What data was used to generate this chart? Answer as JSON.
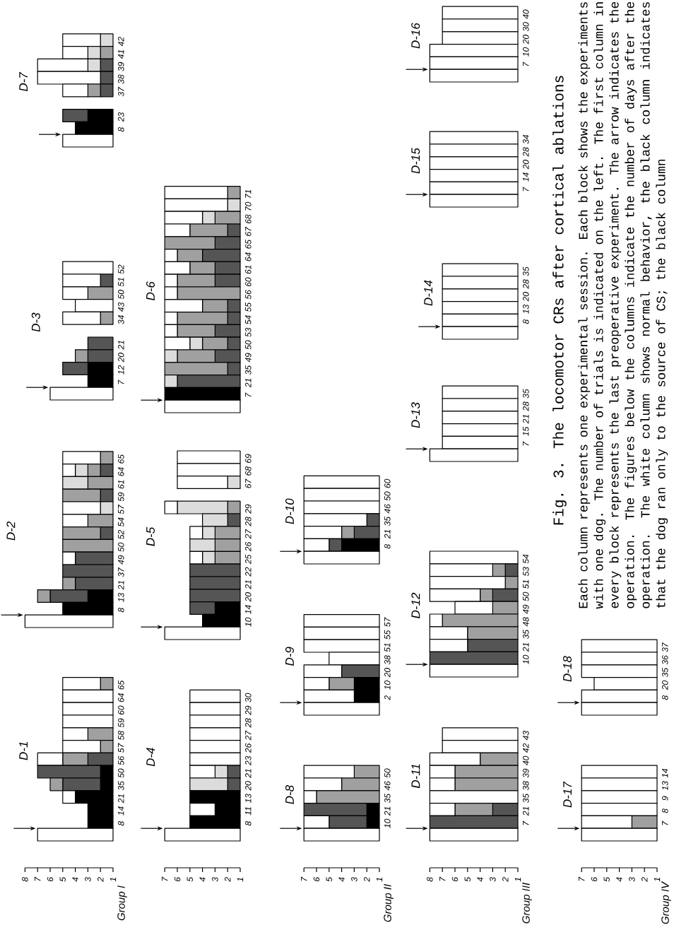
{
  "chart_data": [
    {
      "type": "bar",
      "orientation": "horizontal",
      "title": "D-1",
      "ylabel": "Group I",
      "xlim": [
        8,
        1
      ],
      "xticks": [
        1,
        2,
        3,
        4,
        5,
        6,
        7,
        8
      ],
      "categories": [
        "65",
        "64",
        "60",
        "59",
        "58",
        "57",
        "56",
        "50",
        "35",
        "21",
        "14",
        "8",
        null
      ],
      "series": [
        {
          "color": "#000000",
          "base": [
            null,
            null,
            null,
            null,
            null,
            null,
            null,
            1,
            1,
            1,
            1,
            1,
            null
          ],
          "values": [
            null,
            null,
            null,
            null,
            null,
            null,
            null,
            1,
            1,
            3,
            2,
            2,
            null
          ]
        },
        {
          "color": "#555555",
          "base": [
            null,
            null,
            null,
            null,
            null,
            null,
            1,
            2,
            2,
            null,
            null,
            null,
            null
          ],
          "values": [
            null,
            null,
            null,
            null,
            null,
            null,
            2,
            5,
            3,
            null,
            null,
            null,
            null
          ]
        },
        {
          "color": "#a0a0a0",
          "base": [
            1,
            null,
            null,
            null,
            1,
            1,
            3,
            null,
            5,
            null,
            null,
            null,
            null
          ],
          "values": [
            1,
            null,
            null,
            null,
            2,
            1,
            2,
            null,
            1,
            null,
            null,
            null,
            null
          ]
        },
        {
          "color": "#ffffff",
          "base": [
            2,
            1,
            1,
            1,
            3,
            2,
            5,
            null,
            null,
            4,
            null,
            null,
            1
          ],
          "values": [
            3,
            4,
            4,
            4,
            2,
            3,
            2,
            null,
            null,
            1,
            null,
            null,
            6
          ]
        }
      ]
    },
    {
      "type": "bar",
      "orientation": "horizontal",
      "title": "D-2",
      "xlim": [
        8,
        1
      ],
      "tick_labels": "y",
      "categories": [
        "65",
        "64",
        "61",
        "59",
        "57",
        "54",
        "52",
        "50",
        "49",
        "37",
        "21",
        "13",
        "8",
        null
      ],
      "series": [
        {
          "color": "#000000",
          "base": [
            null,
            null,
            null,
            null,
            null,
            null,
            null,
            null,
            null,
            null,
            null,
            1,
            1,
            null
          ],
          "values": [
            null,
            null,
            null,
            null,
            null,
            null,
            null,
            null,
            null,
            null,
            null,
            2,
            4,
            null
          ]
        },
        {
          "color": "#555555",
          "base": [
            null,
            1,
            null,
            1,
            null,
            null,
            1,
            null,
            1,
            1,
            1,
            3,
            null,
            null
          ],
          "values": [
            null,
            1,
            null,
            1,
            null,
            null,
            1,
            null,
            3,
            4,
            3,
            3,
            null,
            null
          ]
        },
        {
          "color": "#a0a0a0",
          "base": [
            1,
            2,
            1,
            2,
            null,
            1,
            2,
            1,
            null,
            null,
            4,
            6,
            null,
            null
          ],
          "values": [
            1,
            1,
            2,
            3,
            null,
            2,
            3,
            4,
            null,
            null,
            1,
            1,
            null,
            null
          ]
        },
        {
          "color": "#dcdcdc",
          "base": [
            null,
            3,
            3,
            null,
            1,
            null,
            null,
            null,
            null,
            null,
            null,
            null,
            null,
            null
          ],
          "values": [
            null,
            1,
            2,
            null,
            1,
            null,
            null,
            null,
            null,
            null,
            null,
            null,
            null,
            null
          ]
        },
        {
          "color": "#ffffff",
          "base": [
            2,
            4,
            null,
            null,
            2,
            3,
            null,
            null,
            4,
            null,
            null,
            null,
            null,
            1
          ],
          "values": [
            3,
            1,
            null,
            null,
            3,
            2,
            null,
            null,
            1,
            null,
            null,
            null,
            null,
            7
          ]
        }
      ]
    },
    {
      "type": "bar",
      "orientation": "horizontal",
      "title": "D-3",
      "xlim": [
        8,
        1
      ],
      "tick_labels": "y",
      "categories": [
        "52",
        "51",
        "50",
        "43",
        "34",
        null,
        "21",
        "20",
        "12",
        "7",
        null
      ],
      "series": [
        {
          "color": "#000000",
          "base": [
            null,
            null,
            null,
            null,
            null,
            null,
            null,
            null,
            1,
            1,
            null
          ],
          "values": [
            null,
            null,
            null,
            null,
            null,
            null,
            null,
            null,
            2,
            2,
            null
          ]
        },
        {
          "color": "#555555",
          "base": [
            null,
            1,
            null,
            null,
            null,
            null,
            1,
            1,
            3,
            null,
            null
          ],
          "values": [
            null,
            1,
            null,
            null,
            null,
            null,
            2,
            2,
            2,
            null,
            null
          ]
        },
        {
          "color": "#a0a0a0",
          "base": [
            null,
            null,
            1,
            null,
            1,
            null,
            null,
            3,
            null,
            null,
            null
          ],
          "values": [
            null,
            null,
            2,
            null,
            1,
            null,
            null,
            1,
            null,
            null,
            null
          ]
        },
        {
          "color": "#ffffff",
          "base": [
            1,
            2,
            3,
            1,
            2,
            null,
            null,
            null,
            null,
            null,
            1
          ],
          "values": [
            4,
            3,
            2,
            3,
            3,
            null,
            null,
            null,
            null,
            null,
            5
          ]
        }
      ]
    },
    {
      "type": "bar",
      "orientation": "horizontal",
      "title": "D-7",
      "xlim": [
        8,
        1
      ],
      "tick_labels": "y",
      "categories": [
        "42",
        "41",
        "39",
        "38",
        "37",
        null,
        "23",
        "8",
        null
      ],
      "series": [
        {
          "color": "#000000",
          "base": [
            null,
            null,
            null,
            null,
            null,
            null,
            1,
            1,
            null
          ],
          "values": [
            null,
            null,
            null,
            null,
            null,
            null,
            2,
            3,
            null
          ]
        },
        {
          "color": "#555555",
          "base": [
            null,
            null,
            1,
            1,
            1,
            null,
            3,
            null,
            null
          ],
          "values": [
            null,
            null,
            1,
            1,
            1,
            null,
            2,
            null,
            null
          ]
        },
        {
          "color": "#a0a0a0",
          "base": [
            null,
            1,
            null,
            null,
            2,
            null,
            null,
            null,
            null
          ],
          "values": [
            null,
            1,
            null,
            null,
            1,
            null,
            null,
            null,
            null
          ]
        },
        {
          "color": "#dcdcdc",
          "base": [
            1,
            2,
            2,
            null,
            null,
            null,
            null,
            null,
            null
          ],
          "values": [
            1,
            1,
            1,
            null,
            null,
            null,
            null,
            null,
            null
          ]
        },
        {
          "color": "#ffffff",
          "base": [
            2,
            3,
            3,
            2,
            3,
            null,
            null,
            null,
            1
          ],
          "values": [
            3,
            2,
            4,
            5,
            2,
            null,
            null,
            null,
            4
          ]
        }
      ]
    },
    {
      "type": "bar",
      "orientation": "horizontal",
      "title": "D-4",
      "xlim": [
        7,
        1
      ],
      "xticks": [
        1,
        2,
        3,
        4,
        5,
        6,
        7
      ],
      "categories": [
        "30",
        "29",
        "28",
        "27",
        "26",
        "23",
        "21",
        "20",
        "13",
        "11",
        "8",
        null
      ],
      "series": [
        {
          "color": "#000000",
          "base": [
            null,
            null,
            null,
            null,
            null,
            null,
            null,
            null,
            1,
            1,
            1,
            null
          ],
          "values": [
            null,
            null,
            null,
            null,
            null,
            null,
            null,
            null,
            4,
            2,
            4,
            null
          ]
        },
        {
          "color": "#555555",
          "base": [
            null,
            null,
            null,
            null,
            null,
            null,
            1,
            1,
            null,
            null,
            null,
            null
          ],
          "values": [
            null,
            null,
            null,
            null,
            null,
            null,
            1,
            1,
            null,
            null,
            null,
            null
          ]
        },
        {
          "color": "#dcdcdc",
          "base": [
            null,
            null,
            null,
            null,
            null,
            null,
            2,
            2,
            null,
            null,
            null,
            null
          ],
          "values": [
            null,
            null,
            null,
            null,
            null,
            null,
            1,
            3,
            null,
            null,
            null,
            null
          ]
        },
        {
          "color": "#ffffff",
          "base": [
            1,
            1,
            1,
            1,
            1,
            1,
            3,
            null,
            null,
            3,
            null,
            1
          ],
          "values": [
            4,
            4,
            4,
            4,
            4,
            4,
            2,
            null,
            null,
            2,
            null,
            6
          ]
        }
      ]
    },
    {
      "type": "bar",
      "orientation": "horizontal",
      "title": "D-5",
      "xlim": [
        7,
        1
      ],
      "tick_labels": "y",
      "categories": [
        "69",
        "68",
        "67",
        null,
        "29",
        "28",
        "27",
        "26",
        "25",
        "22",
        "21",
        "20",
        "14",
        "10",
        null
      ],
      "series": [
        {
          "color": "#000000",
          "base": [
            null,
            null,
            null,
            null,
            null,
            null,
            null,
            null,
            null,
            null,
            null,
            null,
            1,
            1,
            null
          ],
          "values": [
            null,
            null,
            null,
            null,
            null,
            null,
            null,
            null,
            null,
            null,
            null,
            null,
            2,
            3,
            null
          ]
        },
        {
          "color": "#555555",
          "base": [
            null,
            null,
            null,
            null,
            null,
            1,
            null,
            null,
            null,
            1,
            1,
            1,
            3,
            null,
            null
          ],
          "values": [
            null,
            null,
            null,
            null,
            null,
            1,
            null,
            null,
            null,
            4,
            4,
            4,
            2,
            null,
            null
          ]
        },
        {
          "color": "#a0a0a0",
          "base": [
            null,
            null,
            null,
            null,
            1,
            null,
            1,
            1,
            1,
            null,
            null,
            null,
            null,
            null,
            null
          ],
          "values": [
            null,
            null,
            null,
            null,
            1,
            null,
            2,
            2,
            2,
            null,
            null,
            null,
            null,
            null,
            null
          ]
        },
        {
          "color": "#dcdcdc",
          "base": [
            null,
            null,
            1,
            null,
            2,
            2,
            3,
            3,
            3,
            null,
            null,
            null,
            null,
            null,
            null
          ],
          "values": [
            null,
            null,
            1,
            null,
            4,
            2,
            1,
            2,
            1,
            null,
            null,
            null,
            null,
            null,
            null
          ]
        },
        {
          "color": "#ffffff",
          "base": [
            1,
            1,
            2,
            null,
            6,
            null,
            4,
            null,
            4,
            null,
            null,
            null,
            null,
            null,
            1
          ],
          "values": [
            5,
            5,
            4,
            null,
            1,
            null,
            1,
            null,
            1,
            null,
            null,
            null,
            null,
            null,
            6
          ]
        }
      ]
    },
    {
      "type": "bar",
      "orientation": "horizontal",
      "title": "D-6",
      "xlim": [
        7,
        1
      ],
      "tick_labels": "y",
      "categories": [
        "71",
        "70",
        "68",
        "67",
        "65",
        "64",
        "61",
        "60",
        "56",
        "55",
        "54",
        "53",
        "50",
        "49",
        "35",
        "21",
        "7",
        null
      ],
      "series": [
        {
          "color": "#000000",
          "base": [
            null,
            null,
            null,
            null,
            null,
            null,
            null,
            null,
            null,
            null,
            null,
            null,
            null,
            null,
            null,
            null,
            1,
            null
          ],
          "values": [
            null,
            null,
            null,
            null,
            null,
            null,
            null,
            null,
            null,
            null,
            null,
            null,
            null,
            null,
            null,
            null,
            6,
            null
          ]
        },
        {
          "color": "#555555",
          "base": [
            null,
            null,
            null,
            1,
            1,
            1,
            1,
            1,
            null,
            1,
            1,
            1,
            1,
            1,
            1,
            1,
            null,
            null
          ],
          "values": [
            null,
            null,
            null,
            1,
            2,
            3,
            2,
            2,
            null,
            1,
            1,
            2,
            1,
            2,
            1,
            5,
            null,
            null
          ]
        },
        {
          "color": "#a0a0a0",
          "base": [
            1,
            null,
            1,
            2,
            3,
            4,
            3,
            3,
            1,
            2,
            2,
            3,
            2,
            3,
            2,
            null,
            null,
            null
          ],
          "values": [
            1,
            null,
            2,
            3,
            4,
            2,
            2,
            3,
            5,
            2,
            4,
            3,
            2,
            3,
            5,
            null,
            null,
            null
          ]
        },
        {
          "color": "#dcdcdc",
          "base": [
            null,
            1,
            3,
            null,
            null,
            null,
            null,
            null,
            null,
            null,
            null,
            null,
            4,
            6,
            null,
            6,
            null,
            null
          ],
          "values": [
            null,
            1,
            1,
            null,
            null,
            null,
            null,
            null,
            null,
            null,
            null,
            null,
            1,
            1,
            null,
            1,
            null,
            null
          ]
        },
        {
          "color": "#ffffff",
          "base": [
            2,
            2,
            4,
            5,
            null,
            6,
            5,
            6,
            6,
            4,
            6,
            6,
            5,
            null,
            null,
            null,
            null,
            1
          ],
          "values": [
            5,
            5,
            3,
            2,
            null,
            1,
            2,
            1,
            1,
            3,
            1,
            1,
            2,
            null,
            null,
            null,
            null,
            6
          ]
        }
      ]
    },
    {
      "type": "bar",
      "orientation": "horizontal",
      "title": "D-8",
      "ylabel": "Group II",
      "xlim": [
        7,
        1
      ],
      "xticks": [
        1,
        2,
        3,
        4,
        5,
        6,
        7
      ],
      "categories": [
        "50",
        "46",
        "35",
        "21",
        "10",
        null
      ],
      "series": [
        {
          "color": "#000000",
          "base": [
            null,
            null,
            null,
            1,
            1,
            null
          ],
          "values": [
            null,
            null,
            null,
            1,
            1,
            null
          ]
        },
        {
          "color": "#555555",
          "base": [
            null,
            null,
            null,
            2,
            2,
            null
          ],
          "values": [
            null,
            null,
            null,
            5,
            3,
            null
          ]
        },
        {
          "color": "#a0a0a0",
          "base": [
            1,
            1,
            1,
            null,
            null,
            null
          ],
          "values": [
            2,
            3,
            5,
            null,
            null,
            null
          ]
        },
        {
          "color": "#ffffff",
          "base": [
            3,
            4,
            6,
            null,
            5,
            1
          ],
          "values": [
            4,
            3,
            1,
            null,
            2,
            6
          ]
        }
      ]
    },
    {
      "type": "bar",
      "orientation": "horizontal",
      "title": "D-9",
      "xlim": [
        7,
        1
      ],
      "tick_labels": "y",
      "categories": [
        "57",
        "55",
        "51",
        "38",
        "20",
        "10",
        "2",
        null
      ],
      "series": [
        {
          "color": "#000000",
          "base": [
            null,
            null,
            null,
            null,
            null,
            1,
            1,
            null
          ],
          "values": [
            null,
            null,
            null,
            null,
            null,
            2,
            2,
            null
          ]
        },
        {
          "color": "#555555",
          "base": [
            null,
            null,
            null,
            null,
            1,
            null,
            null,
            null
          ],
          "values": [
            null,
            null,
            null,
            null,
            3,
            null,
            null,
            null
          ]
        },
        {
          "color": "#a0a0a0",
          "base": [
            null,
            null,
            null,
            null,
            null,
            3,
            null,
            null
          ],
          "values": [
            null,
            null,
            null,
            null,
            null,
            2,
            null,
            null
          ]
        },
        {
          "color": "#ffffff",
          "base": [
            1,
            1,
            1,
            1,
            4,
            5,
            3,
            1
          ],
          "values": [
            6,
            6,
            6,
            4,
            3,
            2,
            4,
            6
          ]
        }
      ]
    },
    {
      "type": "bar",
      "orientation": "horizontal",
      "title": "D-10",
      "xlim": [
        7,
        1
      ],
      "tick_labels": "y",
      "categories": [
        "60",
        "50",
        "46",
        "35",
        "21",
        "8",
        null
      ],
      "series": [
        {
          "color": "#000000",
          "base": [
            null,
            null,
            null,
            null,
            null,
            1,
            null
          ],
          "values": [
            null,
            null,
            null,
            null,
            null,
            3,
            null
          ]
        },
        {
          "color": "#555555",
          "base": [
            null,
            null,
            null,
            1,
            1,
            4,
            null
          ],
          "values": [
            null,
            null,
            null,
            1,
            2,
            1,
            null
          ]
        },
        {
          "color": "#a0a0a0",
          "base": [
            null,
            null,
            null,
            null,
            3,
            null,
            null
          ],
          "values": [
            null,
            null,
            null,
            null,
            1,
            null,
            null
          ]
        },
        {
          "color": "#ffffff",
          "base": [
            1,
            1,
            1,
            2,
            4,
            5,
            1
          ],
          "values": [
            6,
            6,
            6,
            5,
            3,
            2,
            6
          ]
        }
      ]
    },
    {
      "type": "bar",
      "orientation": "horizontal",
      "title": "D-11",
      "ylabel": "Group III",
      "xlim": [
        8,
        1
      ],
      "xticks": [
        1,
        2,
        3,
        4,
        5,
        6,
        7,
        8
      ],
      "categories": [
        "43",
        "42",
        "40",
        "39",
        "38",
        "35",
        "21",
        "7",
        null
      ],
      "series": [
        {
          "color": "#555555",
          "base": [
            null,
            null,
            null,
            null,
            null,
            null,
            1,
            1,
            null
          ],
          "values": [
            null,
            null,
            null,
            null,
            null,
            null,
            2,
            7,
            null
          ]
        },
        {
          "color": "#a0a0a0",
          "base": [
            null,
            null,
            1,
            1,
            1,
            null,
            3,
            null,
            null
          ],
          "values": [
            null,
            null,
            3,
            5,
            5,
            null,
            3,
            null,
            null
          ]
        },
        {
          "color": "#ffffff",
          "base": [
            1,
            1,
            4,
            6,
            6,
            1,
            6,
            null,
            1
          ],
          "values": [
            6,
            6,
            4,
            2,
            2,
            7,
            2,
            null,
            7
          ]
        }
      ]
    },
    {
      "type": "bar",
      "orientation": "horizontal",
      "title": "D-12",
      "xlim": [
        8,
        1
      ],
      "tick_labels": "y",
      "categories": [
        "54",
        "53",
        "51",
        "50",
        "49",
        "48",
        "35",
        "21",
        "10",
        null
      ],
      "series": [
        {
          "color": "#555555",
          "base": [
            null,
            1,
            null,
            1,
            null,
            null,
            null,
            1,
            1,
            null
          ],
          "values": [
            null,
            1,
            null,
            2,
            null,
            null,
            null,
            4,
            7,
            null
          ]
        },
        {
          "color": "#a0a0a0",
          "base": [
            null,
            2,
            1,
            3,
            1,
            1,
            1,
            null,
            null,
            null
          ],
          "values": [
            null,
            1,
            1,
            1,
            2,
            6,
            4,
            null,
            null,
            null
          ]
        },
        {
          "color": "#ffffff",
          "base": [
            1,
            3,
            2,
            4,
            3,
            7,
            5,
            5,
            null,
            1
          ],
          "values": [
            7,
            5,
            6,
            4,
            3,
            1,
            3,
            3,
            null,
            7
          ]
        }
      ]
    },
    {
      "type": "bar",
      "orientation": "horizontal",
      "title": "D-13",
      "xlim": [
        8,
        1
      ],
      "tick_labels": "y",
      "categories": [
        "35",
        "28",
        "21",
        "15",
        "7",
        null
      ],
      "series": [
        {
          "color": "#ffffff",
          "base": [
            1,
            1,
            1,
            1,
            1,
            1
          ],
          "values": [
            6,
            6,
            6,
            6,
            6,
            7
          ]
        }
      ]
    },
    {
      "type": "bar",
      "orientation": "horizontal",
      "title": "D-14",
      "xlim": [
        8,
        1
      ],
      "tick_labels": "y",
      "categories": [
        "35",
        "28",
        "20",
        "13",
        "8",
        null
      ],
      "series": [
        {
          "color": "#ffffff",
          "base": [
            1,
            1,
            1,
            1,
            1,
            1
          ],
          "values": [
            6,
            6,
            6,
            6,
            6,
            6
          ]
        }
      ]
    },
    {
      "type": "bar",
      "orientation": "horizontal",
      "title": "D-15",
      "xlim": [
        8,
        1
      ],
      "tick_labels": "y",
      "categories": [
        "34",
        "28",
        "20",
        "14",
        "7",
        null
      ],
      "series": [
        {
          "color": "#ffffff",
          "base": [
            1,
            1,
            1,
            1,
            1,
            1
          ],
          "values": [
            7,
            7,
            7,
            7,
            7,
            7
          ]
        }
      ]
    },
    {
      "type": "bar",
      "orientation": "horizontal",
      "title": "D-16",
      "xlim": [
        8,
        1
      ],
      "tick_labels": "y",
      "categories": [
        "40",
        "30",
        "20",
        "10",
        "7",
        null
      ],
      "series": [
        {
          "color": "#ffffff",
          "base": [
            1,
            1,
            1,
            1,
            1,
            1
          ],
          "values": [
            6,
            6,
            6,
            7,
            7,
            7
          ]
        }
      ]
    },
    {
      "type": "bar",
      "orientation": "horizontal",
      "title": "D-17",
      "ylabel": "Group IV",
      "xlim": [
        7,
        1
      ],
      "xticks": [
        1,
        2,
        3,
        4,
        5,
        6,
        7
      ],
      "categories": [
        "14",
        "13",
        "9",
        "8",
        "7",
        null
      ],
      "series": [
        {
          "color": "#a0a0a0",
          "base": [
            null,
            null,
            null,
            null,
            1,
            null
          ],
          "values": [
            null,
            null,
            null,
            null,
            2,
            null
          ]
        },
        {
          "color": "#ffffff",
          "base": [
            1,
            1,
            1,
            1,
            3,
            1
          ],
          "values": [
            6,
            6,
            6,
            6,
            4,
            6
          ]
        }
      ]
    },
    {
      "type": "bar",
      "orientation": "horizontal",
      "title": "D-18",
      "xlim": [
        7,
        1
      ],
      "tick_labels": "y",
      "categories": [
        "37",
        "36",
        "35",
        "20",
        "8",
        null
      ],
      "series": [
        {
          "color": "#ffffff",
          "base": [
            1,
            1,
            1,
            1,
            1,
            1
          ],
          "values": [
            6,
            6,
            6,
            5,
            6,
            6
          ]
        }
      ]
    },
    {
      "type": "other",
      "title": "Fig. 3. The locomotor CRs after cortical ablations",
      "annotations": [
        "Each column represents one experimental session. Each block shows the experiments with one dog. The number of trials is indicated on the left. The first column in every block represents the last preoperative experiment. The arrow indicates the operation. The figures below the columns indicate the number of days after the operation. The white column shows normal behavior, the black column indicates that the dog ran only to the source of CS; the black column"
      ]
    }
  ]
}
